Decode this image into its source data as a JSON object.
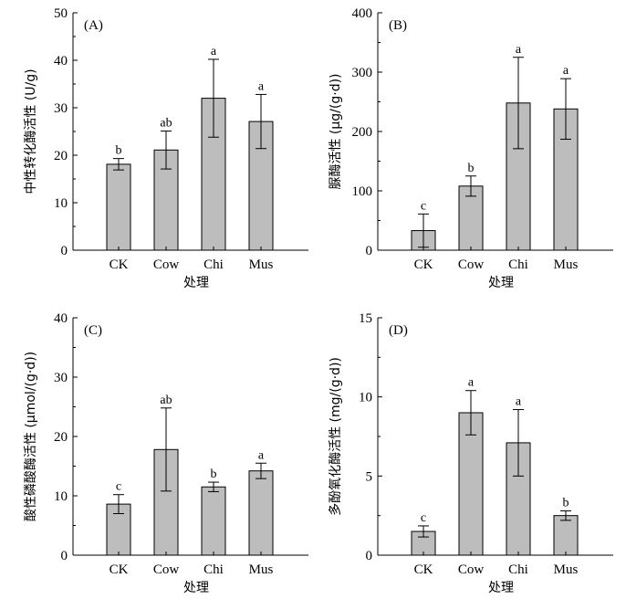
{
  "chart_data": [
    {
      "type": "bar",
      "panel": "(A)",
      "categories": [
        "CK",
        "Cow",
        "Chi",
        "Mus"
      ],
      "values": [
        18.1,
        21.1,
        32.0,
        27.1
      ],
      "errors": [
        1.2,
        4.0,
        8.2,
        5.7
      ],
      "significance": [
        "b",
        "ab",
        "a",
        "a"
      ],
      "ylabel": "中性转化酶活性 (U/g)",
      "xlabel": "处理",
      "ylim": [
        0,
        50
      ],
      "yticks": [
        0,
        10,
        20,
        30,
        40,
        50
      ]
    },
    {
      "type": "bar",
      "panel": "(B)",
      "categories": [
        "CK",
        "Cow",
        "Chi",
        "Mus"
      ],
      "values": [
        33,
        108,
        248,
        238
      ],
      "errors": [
        28,
        17,
        77,
        51
      ],
      "significance": [
        "c",
        "b",
        "a",
        "a"
      ],
      "ylabel": "脲酶活性 (μg/(g·d))",
      "xlabel": "处理",
      "ylim": [
        0,
        400
      ],
      "yticks": [
        0,
        100,
        200,
        300,
        400
      ]
    },
    {
      "type": "bar",
      "panel": "(C)",
      "categories": [
        "CK",
        "Cow",
        "Chi",
        "Mus"
      ],
      "values": [
        8.6,
        17.8,
        11.5,
        14.2
      ],
      "errors": [
        1.6,
        7.0,
        0.8,
        1.3
      ],
      "significance": [
        "c",
        "ab",
        "b",
        "a"
      ],
      "ylabel": "酸性磷酸酶活性 (μmol/(g·d))",
      "xlabel": "处理",
      "ylim": [
        0,
        40
      ],
      "yticks": [
        0,
        10,
        20,
        30,
        40
      ]
    },
    {
      "type": "bar",
      "panel": "(D)",
      "categories": [
        "CK",
        "Cow",
        "Chi",
        "Mus"
      ],
      "values": [
        1.5,
        9.0,
        7.1,
        2.5
      ],
      "errors": [
        0.35,
        1.4,
        2.1,
        0.3
      ],
      "significance": [
        "c",
        "a",
        "a",
        "b"
      ],
      "ylabel": "多酚氧化酶活性 (mg/(g·d))",
      "xlabel": "处理",
      "ylim": [
        0,
        15
      ],
      "yticks": [
        0,
        5,
        10,
        15
      ]
    }
  ]
}
